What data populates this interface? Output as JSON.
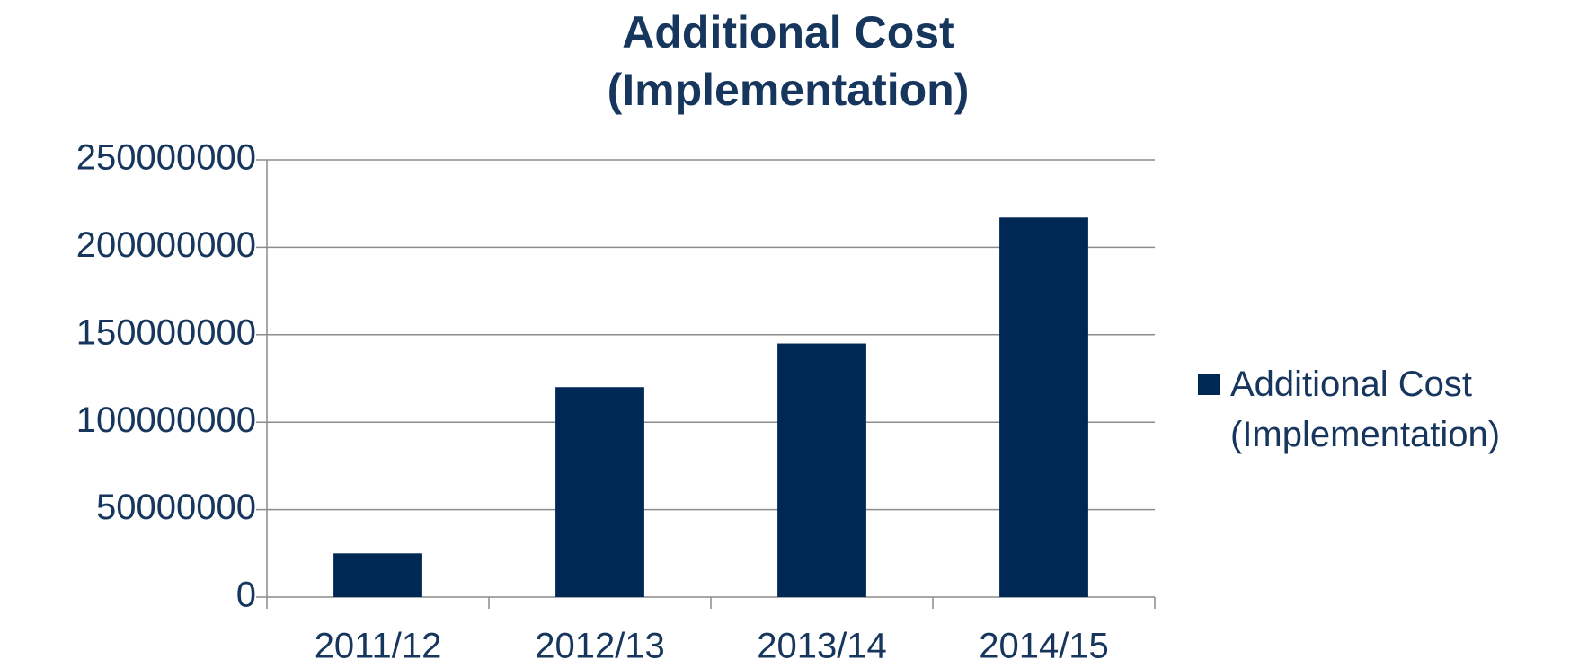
{
  "chart_data": {
    "type": "bar",
    "title": "Additional Cost (Implementation)",
    "categories": [
      "2011/12",
      "2012/13",
      "2013/14",
      "2014/15"
    ],
    "series": [
      {
        "name": "Additional Cost (Implementation)",
        "color": "#002855",
        "values": [
          25000000,
          120000000,
          145000000,
          217000000
        ]
      }
    ],
    "ylim": [
      0,
      250000000
    ],
    "yticks": [
      0,
      50000000,
      100000000,
      150000000,
      200000000,
      250000000
    ],
    "grid": true,
    "legend": "right"
  }
}
